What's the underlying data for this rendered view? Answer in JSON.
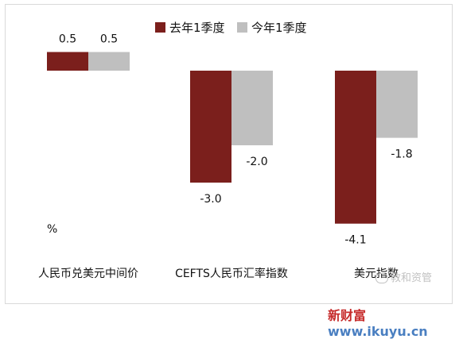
{
  "chart_data": {
    "type": "bar",
    "unit": "%",
    "categories": [
      "人民币兑美元中间价",
      "CEFTS人民币汇率指数",
      "美元指数"
    ],
    "series": [
      {
        "name": "去年1季度",
        "color": "#7b1f1c",
        "values": [
          0.5,
          -3.0,
          -4.1
        ],
        "labels": [
          "0.5",
          "-3.0",
          "-4.1"
        ]
      },
      {
        "name": "今年1季度",
        "color": "#bfbfbf",
        "values": [
          0.5,
          -2.0,
          -1.8
        ],
        "labels": [
          "0.5",
          "-2.0",
          "-1.8"
        ]
      }
    ],
    "legend_position": "top-right",
    "grid": false
  },
  "watermark": {
    "text": "教和资管",
    "icon": "wechat-icon"
  },
  "site": {
    "part1": "新财富",
    "part2": "www.ikuyu.cn"
  }
}
